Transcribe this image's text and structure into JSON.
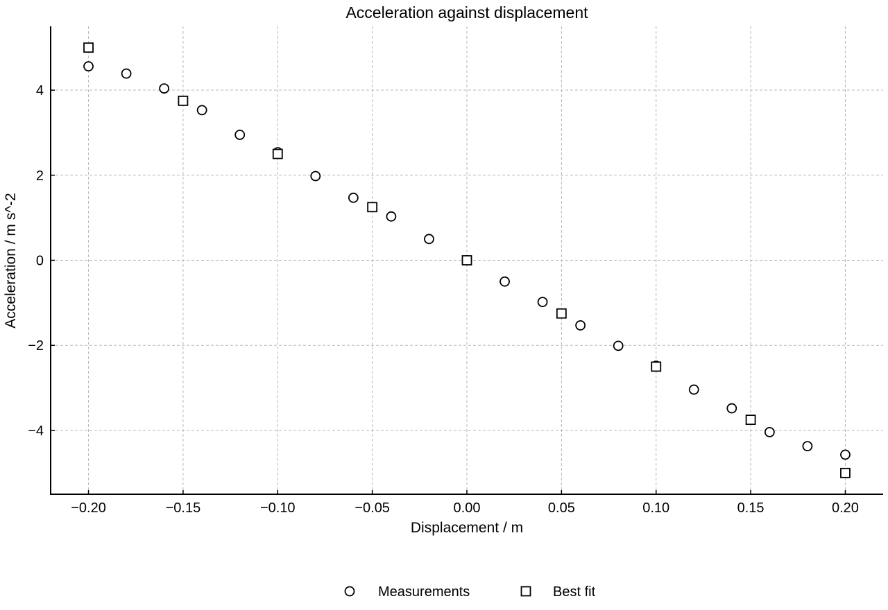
{
  "chart_data": {
    "type": "scatter",
    "title": "Acceleration against displacement",
    "xlabel": "Displacement / m",
    "ylabel": "Acceleration / m s^-2",
    "xlim": [
      -0.22,
      0.22
    ],
    "ylim": [
      -5.5,
      5.5
    ],
    "xticks": [
      -0.2,
      -0.15,
      -0.1,
      -0.05,
      0.0,
      0.05,
      0.1,
      0.15,
      0.2
    ],
    "xtick_labels": [
      "−0.20",
      "−0.15",
      "−0.10",
      "−0.05",
      "0.00",
      "0.05",
      "0.10",
      "0.15",
      "0.20"
    ],
    "yticks": [
      -4,
      -2,
      0,
      2,
      4
    ],
    "ytick_labels": [
      "−4",
      "−2",
      "0",
      "2",
      "4"
    ],
    "grid": true,
    "legend_position": "bottom-center",
    "series": [
      {
        "name": "Measurements",
        "marker": "circle",
        "x": [
          -0.2,
          -0.18,
          -0.16,
          -0.14,
          -0.12,
          -0.1,
          -0.08,
          -0.06,
          -0.04,
          -0.02,
          0.0,
          0.02,
          0.04,
          0.06,
          0.08,
          0.1,
          0.12,
          0.14,
          0.16,
          0.18,
          0.2
        ],
        "y": [
          4.56,
          4.39,
          4.04,
          3.53,
          2.95,
          2.54,
          1.98,
          1.47,
          1.03,
          0.5,
          0.0,
          -0.5,
          -0.98,
          -1.53,
          -2.01,
          -2.48,
          -3.04,
          -3.48,
          -4.04,
          -4.37,
          -4.57
        ]
      },
      {
        "name": "Best fit",
        "marker": "square",
        "x": [
          -0.2,
          -0.15,
          -0.1,
          -0.05,
          0.0,
          0.05,
          0.1,
          0.15,
          0.2
        ],
        "y": [
          5.0,
          3.75,
          2.5,
          1.25,
          0.0,
          -1.25,
          -2.5,
          -3.75,
          -5.0
        ]
      }
    ]
  }
}
